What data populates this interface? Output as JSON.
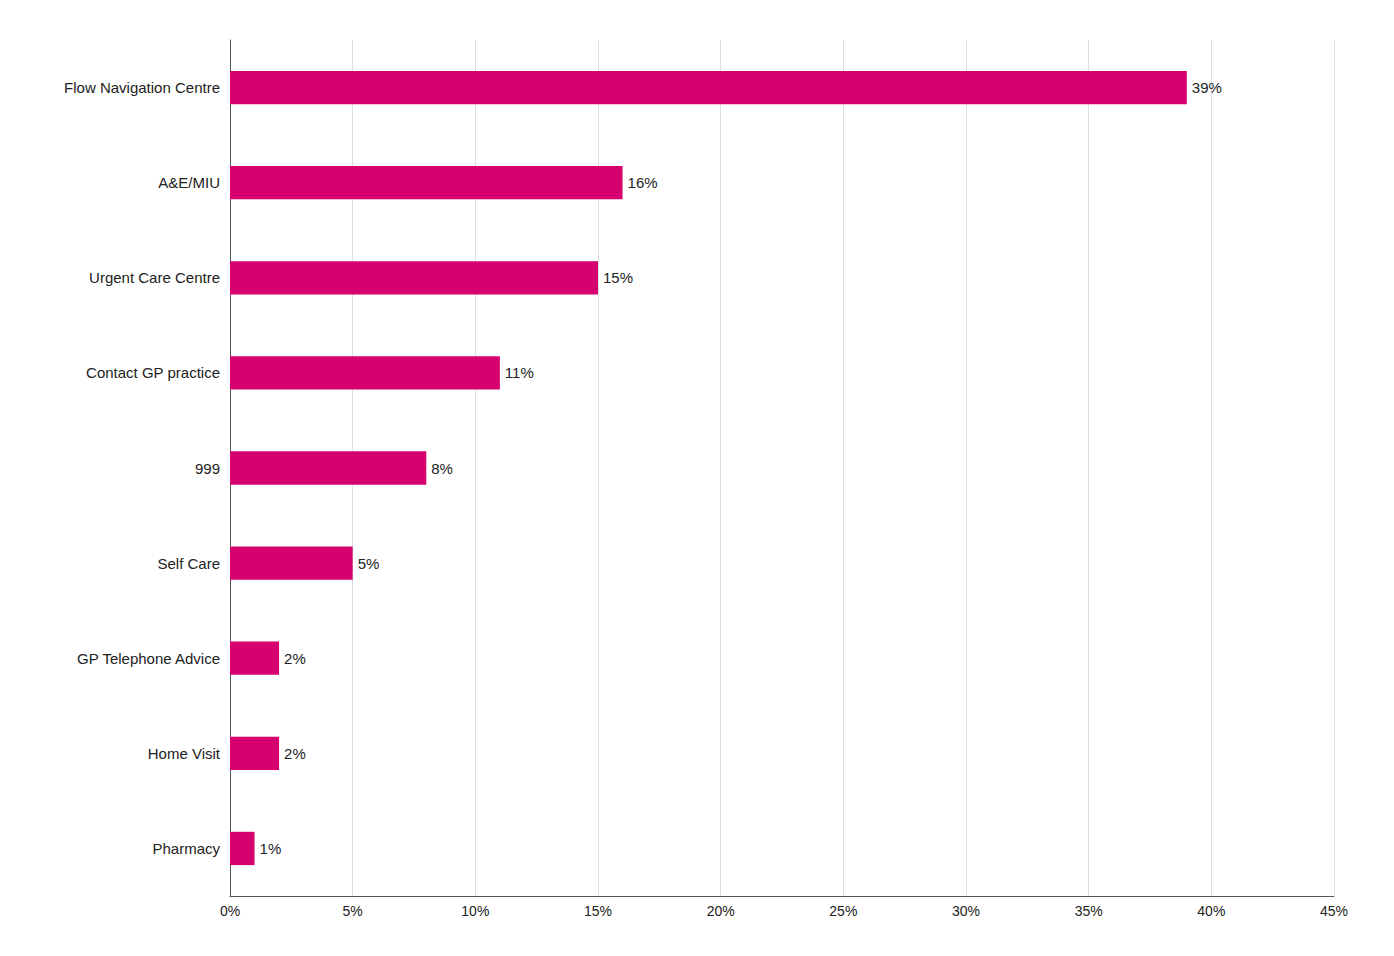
{
  "chart_data": {
    "type": "bar",
    "orientation": "horizontal",
    "categories": [
      "Flow Navigation Centre",
      "A&E/MIU",
      "Urgent Care Centre",
      "Contact GP practice",
      "999",
      "Self Care",
      "GP Telephone Advice",
      "Home Visit",
      "Pharmacy"
    ],
    "values": [
      39,
      16,
      15,
      11,
      8,
      5,
      2,
      2,
      1
    ],
    "value_labels": [
      "39%",
      "16%",
      "15%",
      "11%",
      "8%",
      "5%",
      "2%",
      "2%",
      "1%"
    ],
    "data_labels": true,
    "color": "#D6006E",
    "xlim": [
      0,
      45
    ],
    "xticks": [
      {
        "value": 0,
        "label": "0%"
      },
      {
        "value": 5,
        "label": "5%"
      },
      {
        "value": 10,
        "label": "10%"
      },
      {
        "value": 15,
        "label": "15%"
      },
      {
        "value": 20,
        "label": "20%"
      },
      {
        "value": 25,
        "label": "25%"
      },
      {
        "value": 30,
        "label": "30%"
      },
      {
        "value": 35,
        "label": "35%"
      },
      {
        "value": 40,
        "label": "40%"
      },
      {
        "value": 45,
        "label": "45%"
      }
    ],
    "grid": true
  }
}
